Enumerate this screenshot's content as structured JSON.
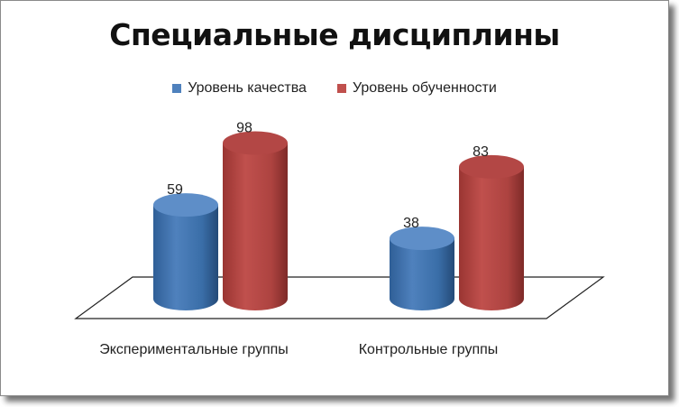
{
  "chart_data": {
    "type": "bar",
    "title": "Специальные дисциплины",
    "categories": [
      "Экспериментальные группы",
      "Контрольные группы"
    ],
    "series": [
      {
        "name": "Уровень качества",
        "values": [
          59,
          38
        ],
        "color": "#4F81BD"
      },
      {
        "name": "Уровень обученности",
        "values": [
          98,
          83
        ],
        "color": "#C0504D"
      }
    ],
    "data_labels": [
      "59",
      "98",
      "38",
      "83"
    ],
    "ylim": [
      0,
      100
    ],
    "grid": false,
    "legend_position": "top",
    "style": "3d-cylinder"
  },
  "legend": {
    "item_0": "Уровень качества",
    "item_1": "Уровень обученности"
  }
}
